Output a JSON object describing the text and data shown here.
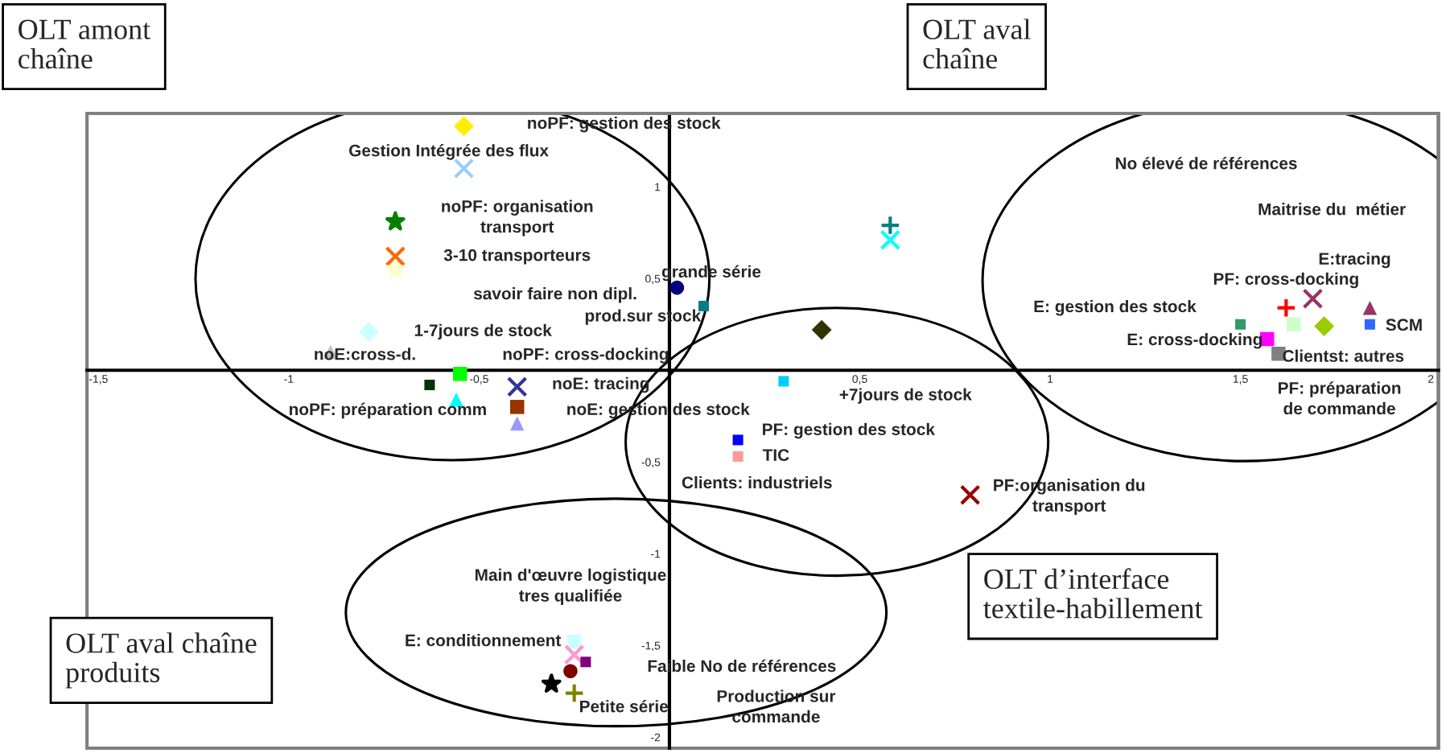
{
  "chart_data": {
    "type": "scatter",
    "xlim": [
      -1.53,
      2.02
    ],
    "ylim": [
      -2.06,
      1.4
    ],
    "xticks": [
      {
        "value": -1.5,
        "label": "-1,5"
      },
      -1,
      {
        "value": -0.5,
        "label": "-0,5"
      },
      {
        "value": 0.5,
        "label": "0,5"
      },
      1,
      {
        "value": 1.5,
        "label": "1,5"
      },
      2
    ],
    "yticks": [
      -2,
      {
        "value": -1.5,
        "label": "-1,5"
      },
      -1,
      {
        "value": -0.5,
        "label": "-0,5"
      },
      {
        "value": 0.5,
        "label": "0,5"
      },
      1
    ],
    "grid": false,
    "series": [
      {
        "color": "#ffee00",
        "marker": "diamond",
        "x": [
          -0.54
        ],
        "values": [
          1.33
        ]
      },
      {
        "color": "#99ccff",
        "marker": "cross",
        "x": [
          -0.54
        ],
        "values": [
          1.1
        ]
      },
      {
        "color": "#008000",
        "marker": "star",
        "x": [
          -0.72
        ],
        "values": [
          0.81
        ]
      },
      {
        "color": "#ff6600",
        "marker": "cross",
        "x": [
          -0.72
        ],
        "values": [
          0.62
        ]
      },
      {
        "color": "#ffffcc",
        "marker": "star",
        "x": [
          -0.72
        ],
        "values": [
          0.55
        ]
      },
      {
        "color": "#ccffff",
        "marker": "diamond",
        "x": [
          -0.79
        ],
        "values": [
          0.21
        ]
      },
      {
        "color": "#c0c0c0",
        "marker": "triangle",
        "x": [
          -0.89
        ],
        "values": [
          0.1
        ]
      },
      {
        "color": "#00ff00",
        "marker": "square",
        "x": [
          -0.55
        ],
        "values": [
          -0.02
        ]
      },
      {
        "color": "#003300",
        "x": [
          -0.63
        ],
        "values": [
          -0.08
        ]
      },
      {
        "color": "#00ffff",
        "marker": "triangle",
        "x": [
          -0.56
        ],
        "values": [
          -0.16
        ]
      },
      {
        "color": "#333399",
        "marker": "cross",
        "x": [
          -0.4
        ],
        "values": [
          -0.09
        ]
      },
      {
        "color": "#993300",
        "marker": "square",
        "x": [
          -0.4
        ],
        "values": [
          -0.2
        ]
      },
      {
        "color": "#9999ff",
        "marker": "triangle",
        "x": [
          -0.4
        ],
        "values": [
          -0.29
        ]
      },
      {
        "color": "#000080",
        "marker": "circle",
        "x": [
          0.02
        ],
        "values": [
          0.45
        ]
      },
      {
        "color": "#008080",
        "x": [
          0.09
        ],
        "values": [
          0.35
        ]
      },
      {
        "color": "#333300",
        "marker": "diamond",
        "x": [
          0.4
        ],
        "values": [
          0.22
        ]
      },
      {
        "color": "#008080",
        "marker": "plus",
        "x": [
          0.58
        ],
        "values": [
          0.79
        ]
      },
      {
        "color": "#00ffff",
        "marker": "cross",
        "x": [
          0.58
        ],
        "values": [
          0.71
        ]
      },
      {
        "color": "#00ccff",
        "x": [
          0.3
        ],
        "values": [
          -0.06
        ]
      },
      {
        "color": "#0000ff",
        "x": [
          0.18
        ],
        "values": [
          -0.38
        ]
      },
      {
        "color": "#ff9999",
        "x": [
          0.18
        ],
        "values": [
          -0.47
        ]
      },
      {
        "color": "#990000",
        "marker": "cross",
        "x": [
          0.79
        ],
        "values": [
          -0.68
        ]
      },
      {
        "color": "#339966",
        "x": [
          1.5
        ],
        "values": [
          0.25
        ]
      },
      {
        "color": "#ff0000",
        "marker": "plus",
        "x": [
          1.62
        ],
        "values": [
          0.34
        ]
      },
      {
        "color": "#993366",
        "marker": "cross",
        "x": [
          1.69
        ],
        "values": [
          0.39
        ]
      },
      {
        "color": "#993366",
        "marker": "triangle",
        "x": [
          1.84
        ],
        "values": [
          0.34
        ]
      },
      {
        "color": "#ccffcc",
        "marker": "square",
        "x": [
          1.64
        ],
        "values": [
          0.25
        ]
      },
      {
        "color": "#99cc00",
        "marker": "diamond",
        "x": [
          1.72
        ],
        "values": [
          0.24
        ]
      },
      {
        "color": "#3366ff",
        "x": [
          1.84
        ],
        "values": [
          0.25
        ]
      },
      {
        "color": "#ff00ff",
        "marker": "square",
        "x": [
          1.57
        ],
        "values": [
          0.17
        ]
      },
      {
        "color": "#808080",
        "marker": "square",
        "x": [
          1.6
        ],
        "values": [
          0.09
        ]
      },
      {
        "color": "#ccffff",
        "marker": "square",
        "x": [
          -0.25
        ],
        "values": [
          -1.48
        ]
      },
      {
        "color": "#ff99cc",
        "marker": "cross",
        "x": [
          -0.25
        ],
        "values": [
          -1.55
        ]
      },
      {
        "color": "#800080",
        "x": [
          -0.22
        ],
        "values": [
          -1.59
        ]
      },
      {
        "color": "#800000",
        "marker": "circle",
        "x": [
          -0.26
        ],
        "values": [
          -1.64
        ]
      },
      {
        "color": "#000000",
        "marker": "star",
        "x": [
          -0.31
        ],
        "values": [
          -1.71
        ]
      },
      {
        "color": "#808000",
        "marker": "plus",
        "x": [
          -0.25
        ],
        "values": [
          -1.76
        ]
      }
    ],
    "annotations": [
      "noPF: gestion des stock",
      "Gestion Intégrée des flux",
      "noPF: organisation\ntransport",
      "3-10 transporteurs",
      "grande série",
      "savoir faire non dipl.",
      "prod.sur stock",
      "1-7jours de stock",
      "noE:cross-d.",
      "noPF: cross-docking",
      "noE: tracing",
      "noPF: préparation comm",
      "noE: gestion des stock",
      "+7jours de stock",
      "PF: gestion des stock",
      "TIC",
      "Clients: industriels",
      "PF:organisation du\ntransport",
      "No élevé de références",
      "Maitrise du  métier",
      "E:tracing",
      "PF: cross-docking",
      "E: gestion des stock",
      "SCM",
      "E: cross-docking",
      "Clientst: autres",
      "PF: préparation\nde commande",
      "Main d'œuvre logistique\ntres qualifiée",
      "E: conditionnement",
      "Faible No de références",
      "Petite série",
      "Production sur\ncommande",
      "OLT amont\nchaîne",
      "OLT aval\nchaîne",
      "OLT d’interface\ntextile-habillement",
      "OLT aval chaîne\nproduits"
    ]
  }
}
